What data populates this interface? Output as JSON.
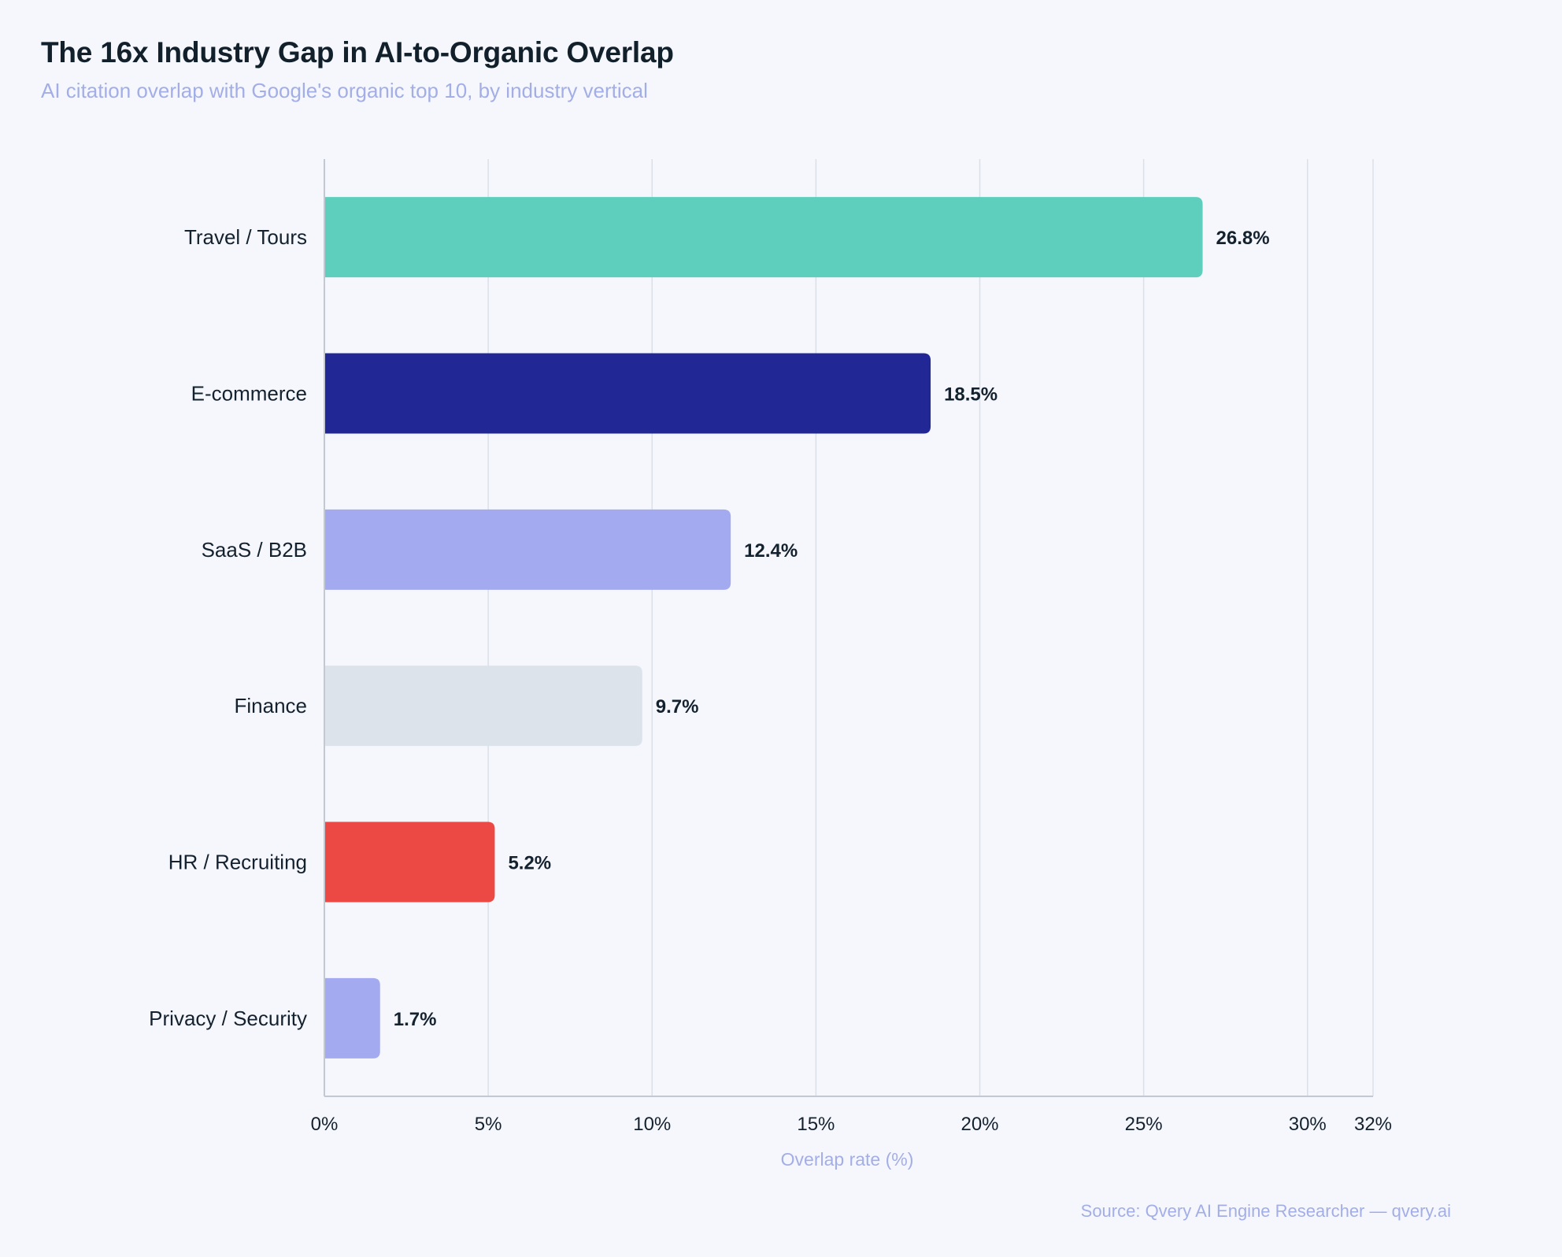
{
  "chart_data": {
    "type": "bar",
    "orientation": "horizontal",
    "title": "The 16x Industry Gap in AI-to-Organic Overlap",
    "subtitle": "AI citation overlap with Google's organic top 10, by industry vertical",
    "xlabel": "Overlap rate (%)",
    "ylabel": "",
    "xlim": [
      0,
      32
    ],
    "xticks": [
      0,
      5,
      10,
      15,
      20,
      25,
      30,
      32
    ],
    "xtick_labels": [
      "0%",
      "5%",
      "10%",
      "15%",
      "20%",
      "25%",
      "30%",
      "32%"
    ],
    "categories": [
      "Travel / Tours",
      "E-commerce",
      "SaaS / B2B",
      "Finance",
      "HR / Recruiting",
      "Privacy / Security"
    ],
    "values": [
      26.8,
      18.5,
      12.4,
      9.7,
      5.2,
      1.7
    ],
    "value_labels": [
      "26.8%",
      "18.5%",
      "12.4%",
      "9.7%",
      "5.2%",
      "1.7%"
    ],
    "colors": [
      "#5fcfbd",
      "#212896",
      "#a4aaef",
      "#dce3eb",
      "#ec4844",
      "#a4aaef"
    ],
    "grid": true,
    "source": "Source: Qvery AI Engine Researcher — qvery.ai"
  },
  "theme": {
    "background": "#f5f7fd",
    "grid_color": "#dbe0e8",
    "text_color": "#14212e",
    "muted_color": "#a3aee6"
  }
}
